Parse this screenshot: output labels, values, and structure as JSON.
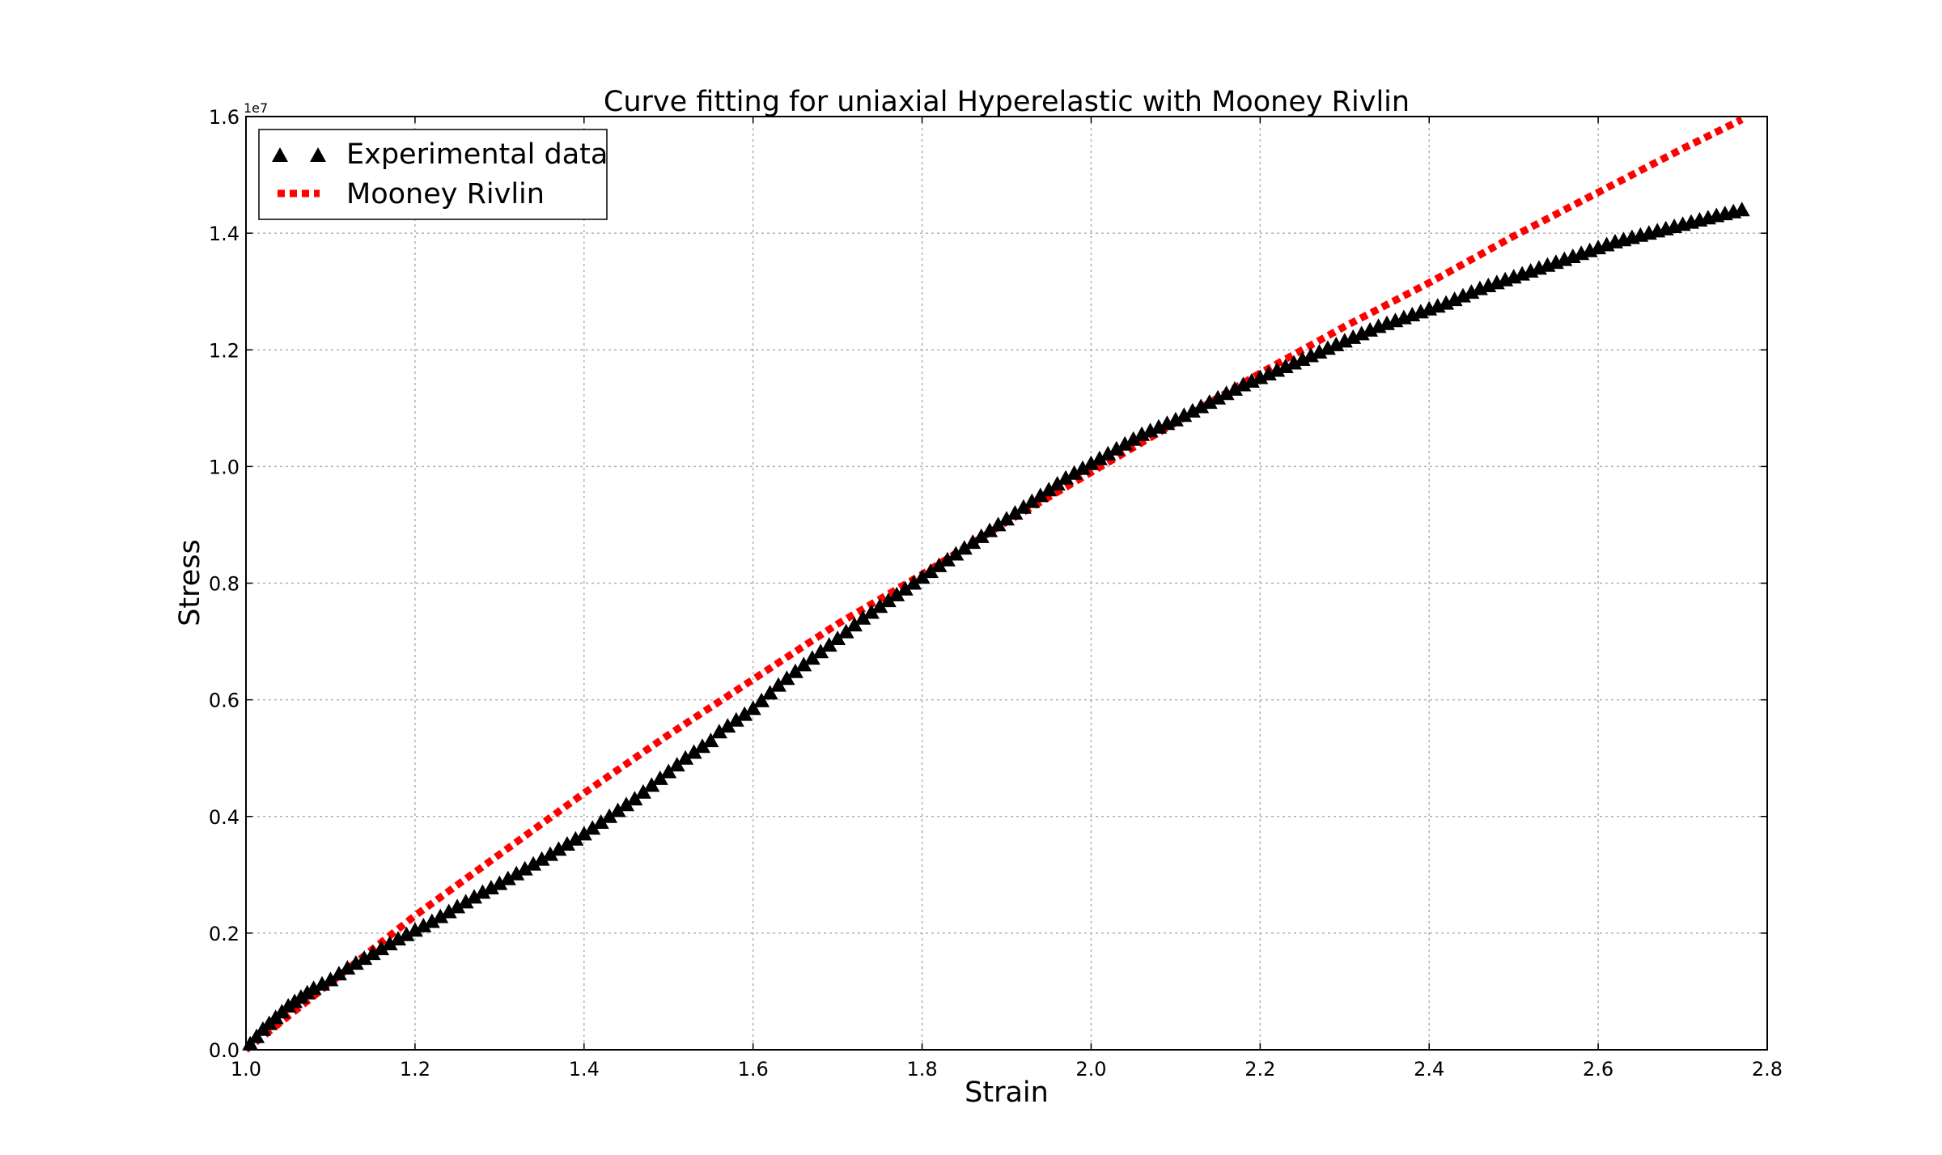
{
  "chart_data": {
    "type": "scatter",
    "title": "Curve fitting for uniaxial Hyperelastic with Mooney Rivlin",
    "xlabel": "Strain",
    "ylabel": "Stress",
    "y_offset_label": "1e7",
    "xlim": [
      1.0,
      2.8
    ],
    "ylim": [
      0.0,
      1.6
    ],
    "y_scale_factor": 10000000,
    "x_ticks": [
      "1.0",
      "1.2",
      "1.4",
      "1.6",
      "1.8",
      "2.0",
      "2.2",
      "2.4",
      "2.6",
      "2.8"
    ],
    "y_ticks": [
      "0.0",
      "0.2",
      "0.4",
      "0.6",
      "0.8",
      "1.0",
      "1.2",
      "1.4",
      "1.6"
    ],
    "grid": true,
    "legend_position": "top-left",
    "series": [
      {
        "name": "Experimental data",
        "marker": "triangle",
        "color": "#000000",
        "points": [
          [
            1.005,
            0.01
          ],
          [
            1.02,
            0.035
          ],
          [
            1.035,
            0.055
          ],
          [
            1.05,
            0.075
          ],
          [
            1.065,
            0.09
          ],
          [
            1.08,
            0.105
          ],
          [
            1.1,
            0.12
          ],
          [
            1.12,
            0.14
          ],
          [
            1.15,
            0.165
          ],
          [
            1.18,
            0.19
          ],
          [
            1.2,
            0.205
          ],
          [
            1.22,
            0.22
          ],
          [
            1.25,
            0.245
          ],
          [
            1.28,
            0.27
          ],
          [
            1.3,
            0.285
          ],
          [
            1.33,
            0.31
          ],
          [
            1.36,
            0.335
          ],
          [
            1.4,
            0.37
          ],
          [
            1.43,
            0.4
          ],
          [
            1.46,
            0.43
          ],
          [
            1.49,
            0.465
          ],
          [
            1.52,
            0.5
          ],
          [
            1.55,
            0.53
          ],
          [
            1.56,
            0.545
          ],
          [
            1.57,
            0.555
          ],
          [
            1.6,
            0.585
          ],
          [
            1.63,
            0.625
          ],
          [
            1.66,
            0.66
          ],
          [
            1.7,
            0.705
          ],
          [
            1.73,
            0.74
          ],
          [
            1.76,
            0.77
          ],
          [
            1.79,
            0.8
          ],
          [
            1.82,
            0.83
          ],
          [
            1.85,
            0.86
          ],
          [
            1.88,
            0.89
          ],
          [
            1.91,
            0.92
          ],
          [
            1.94,
            0.95
          ],
          [
            1.97,
            0.98
          ],
          [
            2.0,
            1.005
          ],
          [
            2.03,
            1.03
          ],
          [
            2.06,
            1.055
          ],
          [
            2.1,
            1.08
          ],
          [
            2.14,
            1.11
          ],
          [
            2.18,
            1.14
          ],
          [
            2.22,
            1.165
          ],
          [
            2.26,
            1.19
          ],
          [
            2.3,
            1.215
          ],
          [
            2.34,
            1.24
          ],
          [
            2.38,
            1.26
          ],
          [
            2.42,
            1.28
          ],
          [
            2.46,
            1.305
          ],
          [
            2.5,
            1.325
          ],
          [
            2.54,
            1.345
          ],
          [
            2.58,
            1.365
          ],
          [
            2.62,
            1.385
          ],
          [
            2.66,
            1.4
          ],
          [
            2.7,
            1.415
          ],
          [
            2.74,
            1.43
          ],
          [
            2.77,
            1.44
          ]
        ]
      },
      {
        "name": "Mooney Rivlin",
        "line_style": "dotted",
        "color": "#ff0000",
        "points": [
          [
            1.0,
            0.0
          ],
          [
            1.1,
            0.115
          ],
          [
            1.2,
            0.23
          ],
          [
            1.3,
            0.335
          ],
          [
            1.4,
            0.44
          ],
          [
            1.5,
            0.54
          ],
          [
            1.6,
            0.635
          ],
          [
            1.7,
            0.73
          ],
          [
            1.8,
            0.815
          ],
          [
            1.9,
            0.905
          ],
          [
            2.0,
            0.99
          ],
          [
            2.1,
            1.075
          ],
          [
            2.2,
            1.16
          ],
          [
            2.3,
            1.24
          ],
          [
            2.4,
            1.315
          ],
          [
            2.5,
            1.395
          ],
          [
            2.6,
            1.47
          ],
          [
            2.7,
            1.545
          ],
          [
            2.77,
            1.595
          ]
        ]
      }
    ]
  }
}
